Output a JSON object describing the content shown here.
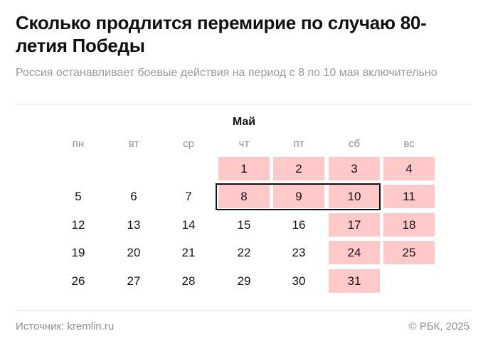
{
  "header": {
    "title": "Сколько продлится перемирие по случаю 80-летия Победы",
    "subtitle": "Россия останавливает боевые действия на период с 8 по 10 мая включительно"
  },
  "calendar": {
    "month": "Май",
    "weekdays": [
      "пн",
      "вт",
      "ср",
      "чт",
      "пт",
      "сб",
      "вс"
    ],
    "colors": {
      "highlight": "#ffc9c9",
      "outline": "#111111"
    },
    "weeks": [
      [
        {
          "d": ""
        },
        {
          "d": ""
        },
        {
          "d": ""
        },
        {
          "d": "1",
          "hl": true
        },
        {
          "d": "2",
          "hl": true
        },
        {
          "d": "3",
          "hl": true
        },
        {
          "d": "4",
          "hl": true
        }
      ],
      [
        {
          "d": "5"
        },
        {
          "d": "6"
        },
        {
          "d": "7"
        },
        {
          "d": "8",
          "hl": true
        },
        {
          "d": "9",
          "hl": true
        },
        {
          "d": "10",
          "hl": true
        },
        {
          "d": "11",
          "hl": true
        }
      ],
      [
        {
          "d": "12"
        },
        {
          "d": "13"
        },
        {
          "d": "14"
        },
        {
          "d": "15"
        },
        {
          "d": "16"
        },
        {
          "d": "17",
          "hl": true
        },
        {
          "d": "18",
          "hl": true
        }
      ],
      [
        {
          "d": "19"
        },
        {
          "d": "20"
        },
        {
          "d": "21"
        },
        {
          "d": "22"
        },
        {
          "d": "23"
        },
        {
          "d": "24",
          "hl": true
        },
        {
          "d": "25",
          "hl": true
        }
      ],
      [
        {
          "d": "26"
        },
        {
          "d": "27"
        },
        {
          "d": "28"
        },
        {
          "d": "29"
        },
        {
          "d": "30"
        },
        {
          "d": "31",
          "hl": true
        },
        {
          "d": ""
        }
      ]
    ],
    "truce_days": [
      "8",
      "9",
      "10"
    ]
  },
  "footer": {
    "source": "Источник: kremlin.ru",
    "copyright": "© РБК, 2025"
  }
}
